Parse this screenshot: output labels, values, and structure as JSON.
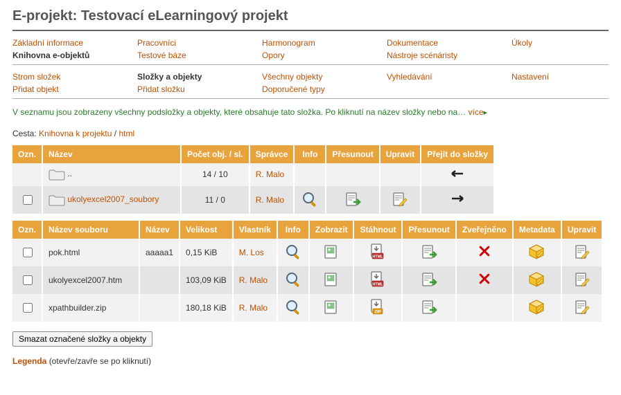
{
  "colors": {
    "primary": "#e8a33d",
    "link": "#c05000",
    "help": "#2a7a2a",
    "text": "#333333",
    "row_odd": "#f2f2f2",
    "row_even": "#e4e4e4"
  },
  "page_title": "E-projekt: Testovací eLearningový projekt",
  "nav_top": [
    {
      "items": [
        "Základní informace",
        "Knihovna e-objektů"
      ],
      "bold_index": 1
    },
    {
      "items": [
        "Pracovníci",
        "Testové báze"
      ]
    },
    {
      "items": [
        "Harmonogram",
        "Opory"
      ]
    },
    {
      "items": [
        "Dokumentace",
        "Nástroje scénáristy"
      ]
    },
    {
      "items": [
        "Úkoly"
      ]
    }
  ],
  "nav_sub": [
    {
      "items": [
        "Strom složek",
        "Přidat objekt"
      ]
    },
    {
      "items": [
        "Složky a objekty",
        "Přidat složku"
      ],
      "bold_index": 0
    },
    {
      "items": [
        "Všechny objekty",
        "Doporučené typy"
      ]
    },
    {
      "items": [
        "Vyhledávání"
      ]
    },
    {
      "items": [
        "Nastavení"
      ]
    }
  ],
  "help": {
    "text": "V seznamu jsou zobrazeny všechny podsložky a objekty, které obsahuje tato složka. Po kliknutí na název složky nebo na…",
    "more": "více",
    "arrow": "▸"
  },
  "path": {
    "label": "Cesta:",
    "crumb1": "Knihovna k projektu",
    "sep": "/",
    "crumb2": "html"
  },
  "folders": {
    "columns": [
      "Ozn.",
      "Název",
      "Počet obj. / sl.",
      "Správce",
      "Info",
      "Přesunout",
      "Upravit",
      "Přejít do složky"
    ],
    "rows": [
      {
        "check": false,
        "name": "..",
        "name_plain": true,
        "count": "14 / 10",
        "owner": "R. Malo",
        "info": false,
        "move": false,
        "edit": false,
        "go": "left"
      },
      {
        "check": true,
        "name": "ukolyexcel2007_soubory",
        "count": "11 / 0",
        "owner": "R. Malo",
        "info": true,
        "move": true,
        "edit": true,
        "go": "right"
      }
    ]
  },
  "files": {
    "columns": [
      "Ozn.",
      "Název souboru",
      "Název",
      "Velikost",
      "Vlastník",
      "Info",
      "Zobrazit",
      "Stáhnout",
      "Přesunout",
      "Zveřejněno",
      "Metadata",
      "Upravit"
    ],
    "rows": [
      {
        "fname": "pok.html",
        "dname": "aaaaa1",
        "size": "0,15 KiB",
        "owner": "M. Los",
        "ftype": "html",
        "published": false
      },
      {
        "fname": "ukolyexcel2007.htm",
        "dname": "",
        "size": "103,09 KiB",
        "owner": "R. Malo",
        "ftype": "html",
        "published": false
      },
      {
        "fname": "xpathbuilder.zip",
        "dname": "",
        "size": "180,18 KiB",
        "owner": "R. Malo",
        "ftype": "zip",
        "published": true
      }
    ]
  },
  "delete_btn": "Smazat označené složky a objekty",
  "legenda": {
    "label": "Legenda",
    "hint": "(otevře/zavře se po kliknutí)"
  }
}
